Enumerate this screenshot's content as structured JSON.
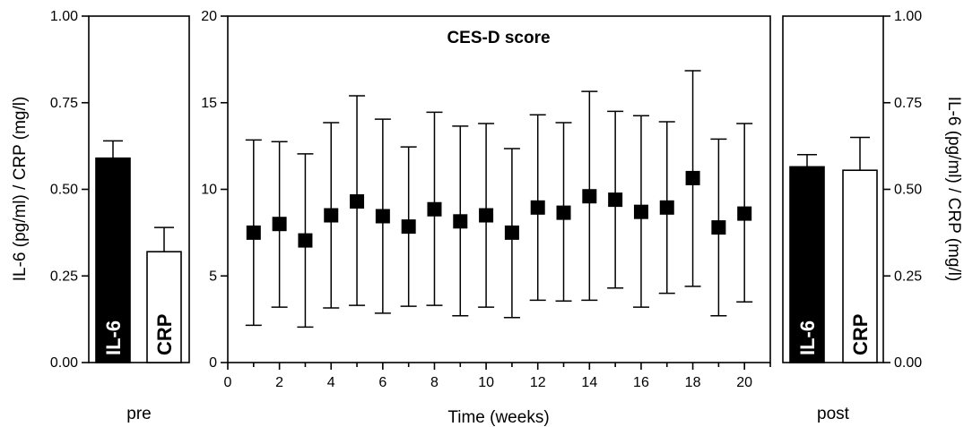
{
  "chart_data": [
    {
      "type": "bar",
      "panel": "pre",
      "categories": [
        "IL-6",
        "CRP"
      ],
      "values": [
        0.59,
        0.32
      ],
      "errors": [
        0.05,
        0.07
      ],
      "colors": [
        "#000000",
        "#ffffff"
      ],
      "label_colors": [
        "#ffffff",
        "#000000"
      ],
      "xlabel": "pre",
      "ylabel": "IL-6 (pg/ml) / CRP (mg/l)",
      "ylim": [
        0,
        1
      ],
      "yticks": [
        "0.00",
        "0.25",
        "0.50",
        "0.75",
        "1.00"
      ],
      "ytick_values": [
        0,
        0.25,
        0.5,
        0.75,
        1.0
      ]
    },
    {
      "type": "scatter",
      "panel": "main",
      "title": "CES-D score",
      "xlabel": "Time (weeks)",
      "ylabel": "",
      "xlim": [
        0,
        21
      ],
      "ylim": [
        0,
        20
      ],
      "xticks": [
        "0",
        "2",
        "4",
        "6",
        "8",
        "10",
        "12",
        "14",
        "16",
        "18",
        "20"
      ],
      "xtick_values": [
        0,
        2,
        4,
        6,
        8,
        10,
        12,
        14,
        16,
        18,
        20
      ],
      "yticks": [
        "0",
        "5",
        "10",
        "15",
        "20"
      ],
      "ytick_values": [
        0,
        5,
        10,
        15,
        20
      ],
      "x": [
        1,
        2,
        3,
        4,
        5,
        6,
        7,
        8,
        9,
        10,
        11,
        12,
        13,
        14,
        15,
        16,
        17,
        18,
        19,
        20
      ],
      "y": [
        7.5,
        8.0,
        7.05,
        8.5,
        9.3,
        8.45,
        7.85,
        8.85,
        8.15,
        8.5,
        7.5,
        8.95,
        8.65,
        9.6,
        9.4,
        8.7,
        8.95,
        10.65,
        7.8,
        8.6
      ],
      "err_high": [
        12.85,
        12.75,
        12.05,
        13.85,
        15.4,
        14.05,
        12.45,
        14.45,
        13.65,
        13.8,
        12.35,
        14.3,
        13.85,
        15.65,
        14.5,
        14.25,
        13.9,
        16.85,
        12.9,
        13.8
      ],
      "err_low": [
        2.15,
        3.2,
        2.05,
        3.15,
        3.3,
        2.85,
        3.25,
        3.3,
        2.7,
        3.2,
        2.6,
        3.6,
        3.55,
        3.6,
        4.3,
        3.2,
        4.0,
        4.4,
        2.7,
        3.5
      ]
    },
    {
      "type": "bar",
      "panel": "post",
      "categories": [
        "IL-6",
        "CRP"
      ],
      "values": [
        0.565,
        0.555
      ],
      "errors": [
        0.035,
        0.095
      ],
      "colors": [
        "#000000",
        "#ffffff"
      ],
      "label_colors": [
        "#ffffff",
        "#000000"
      ],
      "xlabel": "post",
      "ylabel": "IL-6 (pg/ml) / CRP (mg/l)",
      "ylim": [
        0,
        1
      ],
      "yticks": [
        "0.00",
        "0.25",
        "0.50",
        "0.75",
        "1.00"
      ],
      "ytick_values": [
        0,
        0.25,
        0.5,
        0.75,
        1.0
      ]
    }
  ]
}
